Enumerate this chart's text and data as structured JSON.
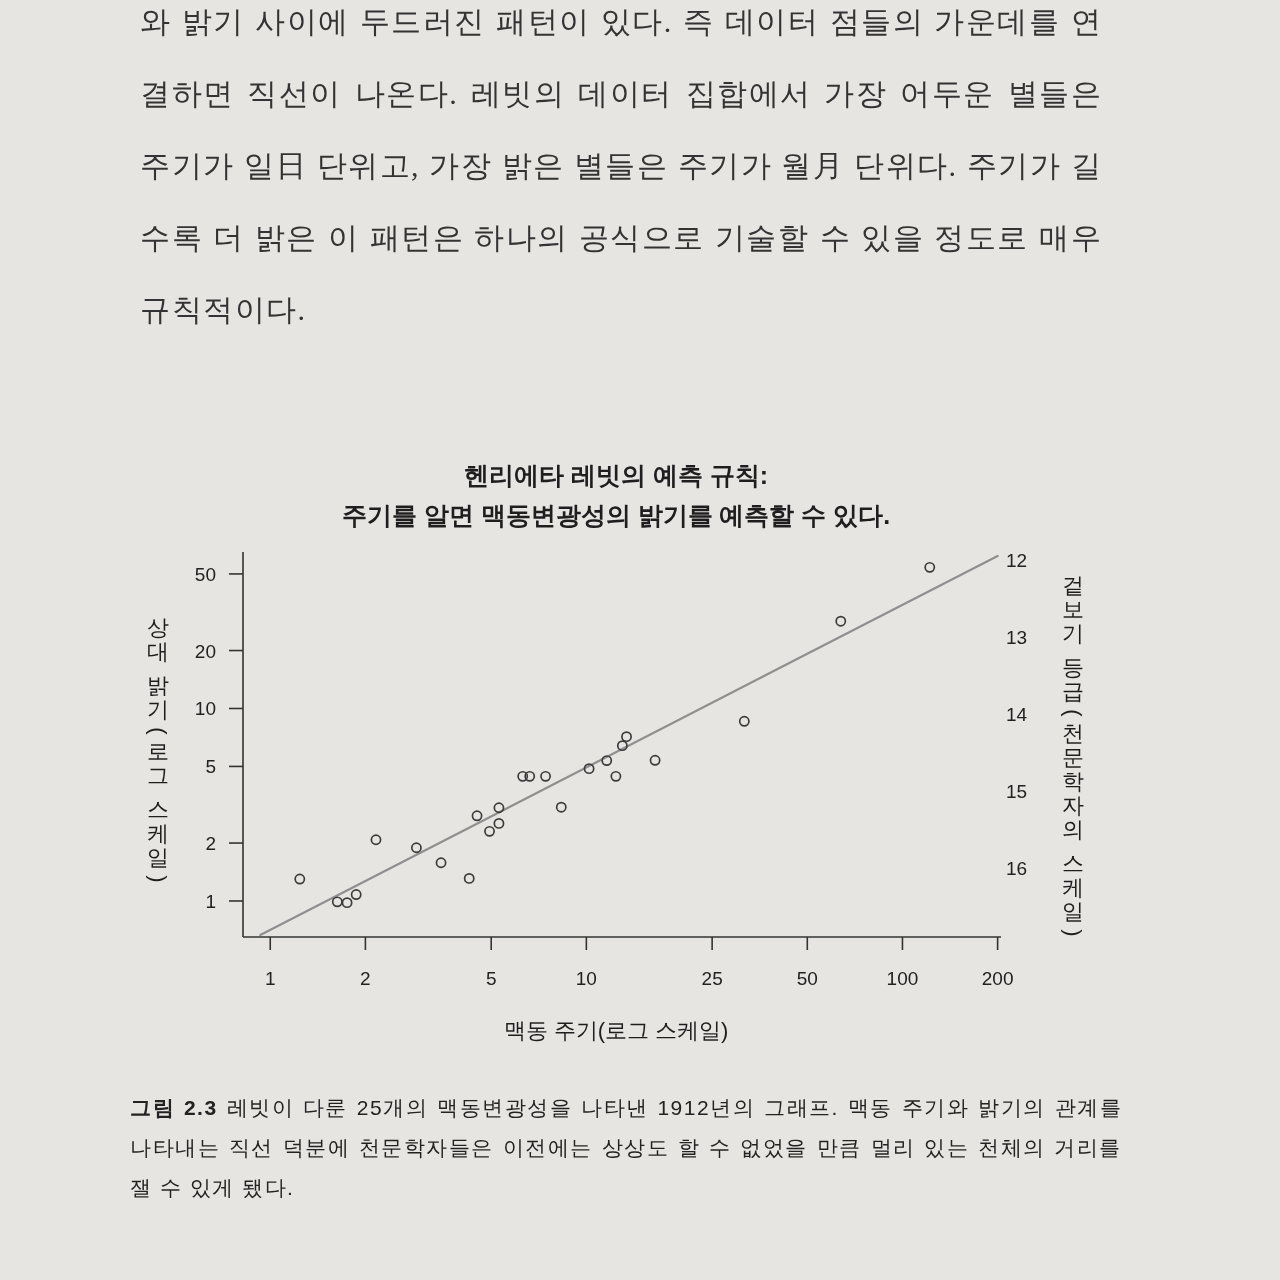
{
  "chart_data": {
    "type": "scatter",
    "title": "헨리에타 레빗의 예측 규칙:",
    "subtitle": "주기를 알면 맥동변광성의 밝기를 예측할 수 있다.",
    "xlabel": "맥동 주기(로그 스케일)",
    "ylabel": "상대 밝기(로그 스케일)",
    "y2label": "겉보기 등급(천문학자의 스케일)",
    "annotations": [
      "와 밝기 사이에 두드러진 패턴이 있다. 즉 데이터 점들의 가운데를 연결하면 직선이 나온다. 레빗의 데이터 집합에서 가장 어두운 별들은 주기가 일日 단위고, 가장 밝은 별들은 주기가 월月 단위다. 주기가 길수록 더 밝은 이 패턴은 하나의 공식으로 기술할 수 있을 정도로 매우 규칙적이다.",
      "그림 2.3",
      "레빗이 다룬 25개의 맥동변광성을 나타낸 1912년의 그래프. 맥동 주기와 밝기의 관계를 나타내는 직선 덕분에 천문학자들은 이전에는 상상도 할 수 없었을 만큼 멀리 있는 천체의 거리를 잴 수 있게 됐다."
    ],
    "series": [
      {
        "type": "line",
        "color": "#8f8f8f",
        "x": [
          0.93,
          200
        ],
        "values": [
          0.665,
          62
        ]
      },
      {
        "color": "#3c3c3c",
        "marker": "circle",
        "x": [
          1.24,
          1.63,
          1.75,
          1.87,
          2.16,
          2.9,
          3.47,
          4.26,
          4.51,
          4.94,
          5.29,
          5.29,
          6.29,
          6.62,
          7.43,
          8.33,
          10.2,
          11.6,
          12.4,
          13.0,
          13.4,
          16.5,
          31.6,
          63.8,
          122
        ],
        "values": [
          1.3,
          0.99,
          0.98,
          1.08,
          2.08,
          1.89,
          1.58,
          1.31,
          2.77,
          2.3,
          2.53,
          3.05,
          4.44,
          4.44,
          4.44,
          3.07,
          4.87,
          5.36,
          4.44,
          6.41,
          7.14,
          5.38,
          8.58,
          28.4,
          54.1
        ]
      }
    ],
    "log": "xy",
    "grid": false,
    "xlim": [
      0.82,
      205
    ],
    "ylim": [
      0.65,
      65
    ],
    "y2lim": [
      16.9,
      11.9
    ],
    "xticks": [
      1,
      2,
      5,
      10,
      25,
      50,
      100,
      200
    ],
    "yticks": [
      1,
      2,
      5,
      10,
      20,
      50
    ],
    "y2ticks": [
      12,
      13,
      14,
      15,
      16
    ]
  }
}
